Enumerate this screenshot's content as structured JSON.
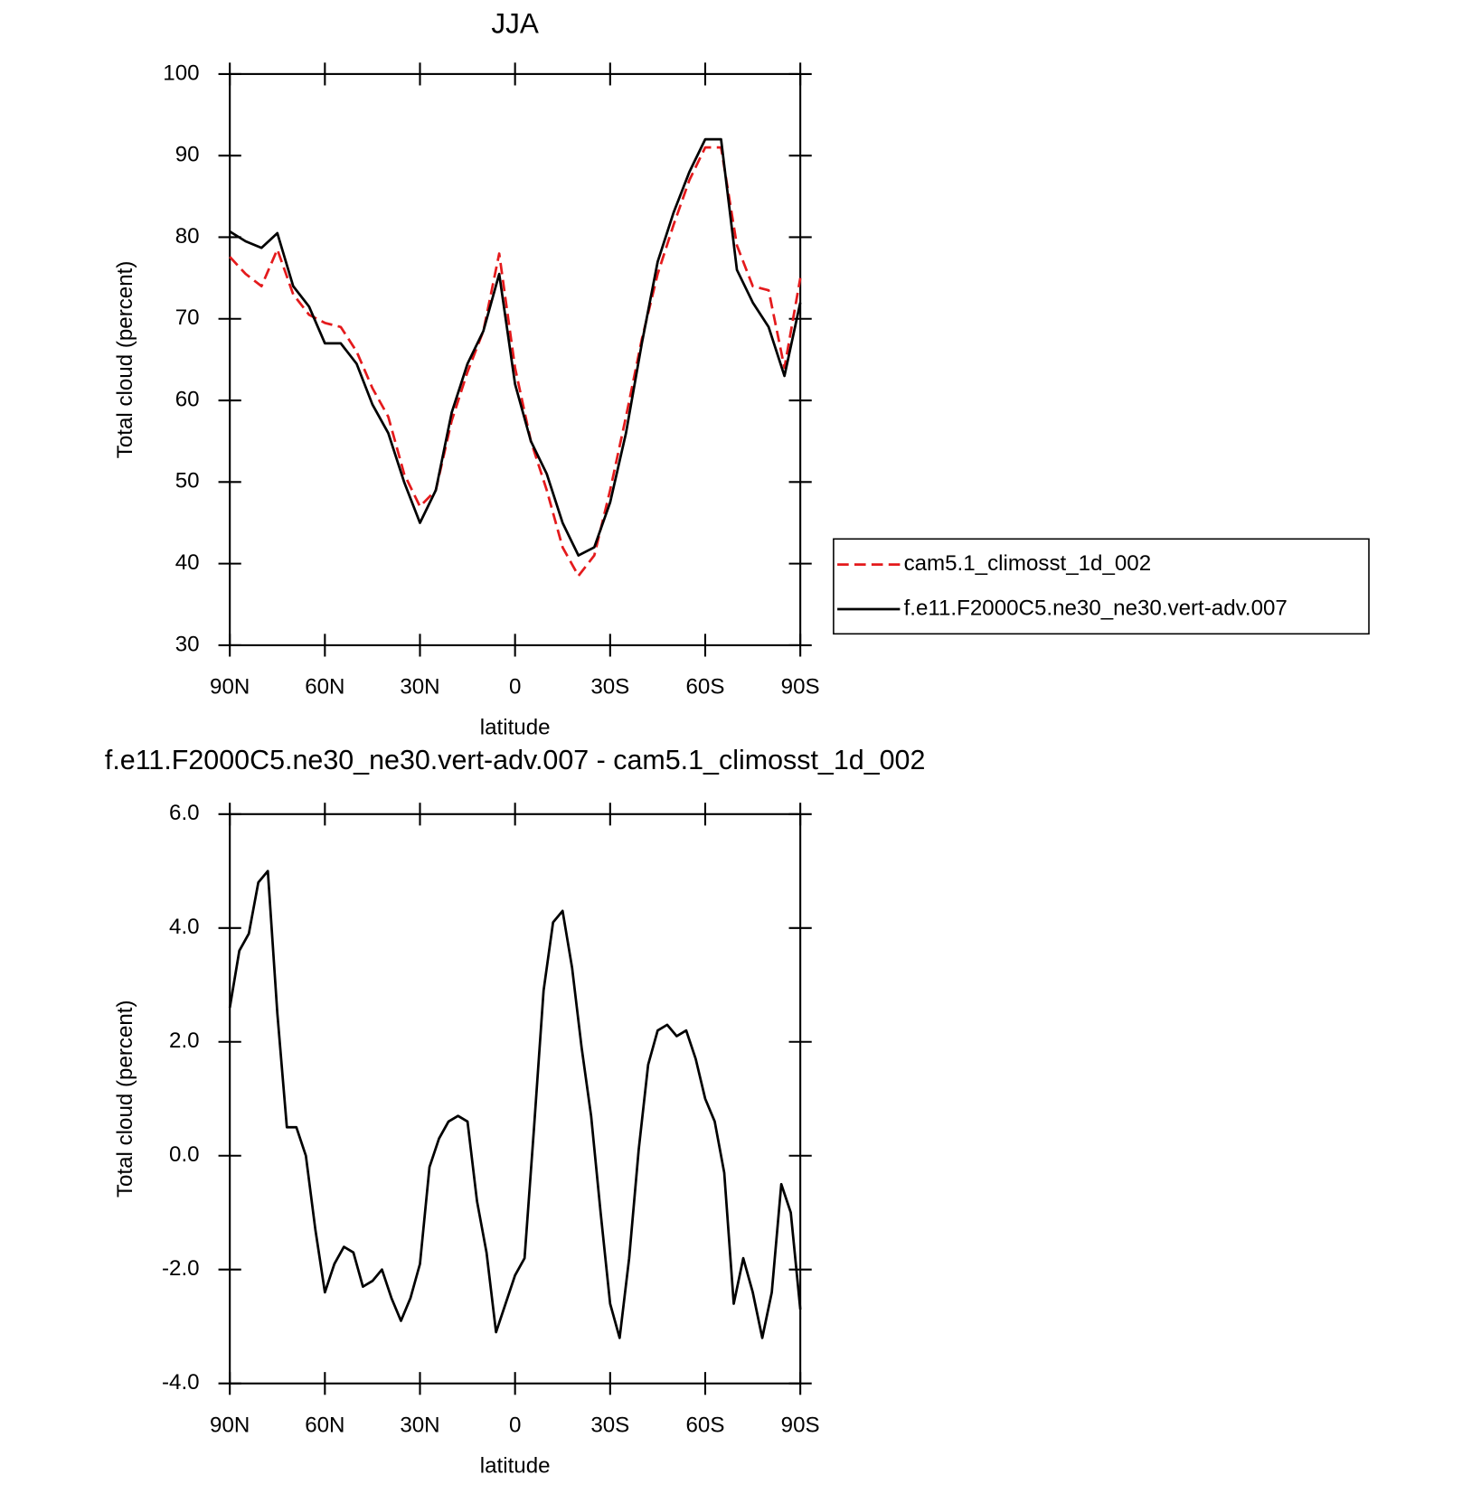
{
  "chart_data": [
    {
      "type": "line",
      "title": "JJA",
      "xlabel": "latitude",
      "ylabel": "Total cloud (percent)",
      "x": [
        90,
        85,
        80,
        75,
        70,
        65,
        60,
        55,
        50,
        45,
        40,
        35,
        30,
        25,
        20,
        15,
        10,
        5,
        0,
        -5,
        -10,
        -15,
        -20,
        -25,
        -30,
        -35,
        -40,
        -45,
        -50,
        -55,
        -60,
        -65,
        -70,
        -75,
        -80,
        -85,
        -90
      ],
      "series": [
        {
          "name": "cam5.1_climosst_1d_002",
          "color": "#e41a1c",
          "style": "dashed",
          "values": [
            77.6,
            75.5,
            74,
            78.5,
            73,
            70.5,
            69.5,
            69,
            66,
            61.5,
            58,
            51,
            47,
            49,
            57.5,
            63.5,
            68.5,
            78,
            64,
            55,
            49,
            42,
            38.5,
            41,
            49,
            58,
            67.5,
            75.5,
            81.5,
            87,
            91,
            91,
            79,
            74,
            73.5,
            64,
            75
          ]
        },
        {
          "name": "f.e11.F2000C5.ne30_ne30.vert-adv.007",
          "color": "#000000",
          "style": "solid",
          "values": [
            80.7,
            79.5,
            78.7,
            80.5,
            74,
            71.5,
            67,
            67,
            64.5,
            59.5,
            56,
            50,
            45,
            49,
            58.5,
            64.5,
            68.5,
            75.5,
            62,
            55,
            51,
            45,
            41,
            42,
            47.5,
            56,
            67,
            77,
            83,
            88,
            92,
            92,
            76,
            72,
            69,
            63,
            72
          ]
        }
      ],
      "xlim": [
        90,
        -90
      ],
      "xticks": [
        {
          "value": 90,
          "label": "90N"
        },
        {
          "value": 60,
          "label": "60N"
        },
        {
          "value": 30,
          "label": "30N"
        },
        0,
        {
          "value": -30,
          "label": "30S"
        },
        {
          "value": -60,
          "label": "60S"
        },
        {
          "value": -90,
          "label": "90S"
        }
      ],
      "ylim": [
        30,
        100
      ],
      "yticks": [
        30,
        40,
        50,
        60,
        70,
        80,
        90,
        100
      ],
      "legend": "right"
    },
    {
      "type": "line",
      "title": "f.e11.F2000C5.ne30_ne30.vert-adv.007 - cam5.1_climosst_1d_002",
      "xlabel": "latitude",
      "ylabel": "Total cloud (percent)",
      "x": [
        90,
        87,
        84,
        81,
        78,
        75,
        72,
        69,
        66,
        63,
        60,
        57,
        54,
        51,
        48,
        45,
        42,
        39,
        36,
        33,
        30,
        27,
        24,
        21,
        18,
        15,
        12,
        9,
        6,
        3,
        0,
        -3,
        -6,
        -9,
        -12,
        -15,
        -18,
        -21,
        -24,
        -27,
        -30,
        -33,
        -36,
        -39,
        -42,
        -45,
        -48,
        -51,
        -54,
        -57,
        -60,
        -63,
        -66,
        -69,
        -72,
        -75,
        -78,
        -81,
        -84,
        -87,
        -90
      ],
      "values": [
        2.6,
        3.6,
        3.9,
        4.8,
        5.0,
        2.5,
        0.5,
        0.5,
        0.0,
        -1.3,
        -2.4,
        -1.9,
        -1.6,
        -1.7,
        -2.3,
        -2.2,
        -2.0,
        -2.5,
        -2.9,
        -2.5,
        -1.9,
        -0.2,
        0.3,
        0.6,
        0.7,
        0.6,
        -0.8,
        -1.7,
        -3.1,
        -2.6,
        -2.1,
        -1.8,
        0.5,
        2.9,
        4.1,
        4.3,
        3.3,
        1.9,
        0.7,
        -1.0,
        -2.6,
        -3.2,
        -1.8,
        0.1,
        1.6,
        2.2,
        2.3,
        2.1,
        2.2,
        1.7,
        1.0,
        0.6,
        -0.3,
        -2.6,
        -1.8,
        -2.4,
        -3.2,
        -2.4,
        -0.5,
        -1.0,
        -2.7
      ],
      "color": "#000000",
      "style": "solid",
      "xlim": [
        90,
        -90
      ],
      "xticks": [
        {
          "value": 90,
          "label": "90N"
        },
        {
          "value": 60,
          "label": "60N"
        },
        {
          "value": 30,
          "label": "30N"
        },
        0,
        {
          "value": -30,
          "label": "30S"
        },
        {
          "value": -60,
          "label": "60S"
        },
        {
          "value": -90,
          "label": "90S"
        }
      ],
      "ylim": [
        -4,
        6
      ],
      "yticks": [
        {
          "value": -4,
          "label": "-4.0"
        },
        {
          "value": -2,
          "label": "-2.0"
        },
        {
          "value": 0,
          "label": "0.0"
        },
        {
          "value": 2,
          "label": "2.0"
        },
        {
          "value": 4,
          "label": "4.0"
        },
        {
          "value": 6,
          "label": "6.0"
        }
      ]
    }
  ]
}
